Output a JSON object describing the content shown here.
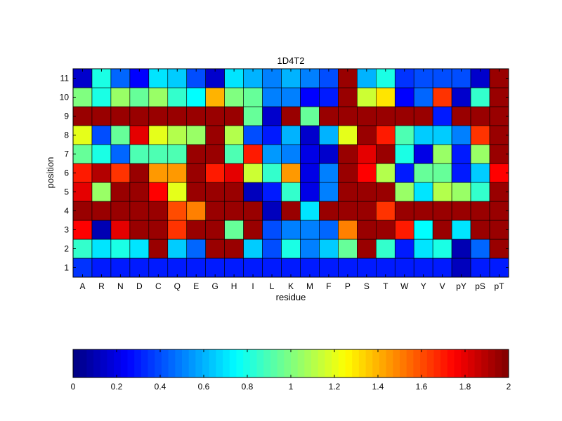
{
  "chart_data": {
    "type": "heatmap",
    "title": "1D4T2",
    "xlabel": "residue",
    "ylabel": "position",
    "x_categories": [
      "A",
      "R",
      "N",
      "D",
      "C",
      "Q",
      "E",
      "G",
      "H",
      "I",
      "L",
      "K",
      "M",
      "F",
      "P",
      "S",
      "T",
      "W",
      "Y",
      "V",
      "pY",
      "pS",
      "pT"
    ],
    "y_categories": [
      "1",
      "2",
      "3",
      "4",
      "5",
      "6",
      "7",
      "8",
      "9",
      "10",
      "11"
    ],
    "colormap": "jet",
    "clim": [
      0,
      2
    ],
    "colorbar": {
      "orientation": "horizontal",
      "placement": "bottom",
      "ticks": [
        0,
        0.2,
        0.4,
        0.6,
        0.8,
        1,
        1.2,
        1.4,
        1.6,
        1.8,
        2
      ],
      "tick_labels": [
        "0",
        "0.2",
        "0.4",
        "0.6",
        "0.8",
        "1",
        "1.2",
        "1.4",
        "1.6",
        "1.8",
        "2"
      ]
    },
    "grid": false,
    "values": [
      [
        0.35,
        0.3,
        0.3,
        0.3,
        0.3,
        0.3,
        0.3,
        0.3,
        0.3,
        0.3,
        0.3,
        0.3,
        0.3,
        0.3,
        0.3,
        0.3,
        0.3,
        0.3,
        0.3,
        0.3,
        0.12,
        0.3,
        0.3
      ],
      [
        0.85,
        0.7,
        0.8,
        0.7,
        1.95,
        0.65,
        0.45,
        1.95,
        1.95,
        0.65,
        0.4,
        0.8,
        0.5,
        0.65,
        0.95,
        1.95,
        0.85,
        0.3,
        0.7,
        0.8,
        0.1,
        0.45,
        1.95
      ],
      [
        1.75,
        0.1,
        1.8,
        1.95,
        1.95,
        1.65,
        1.95,
        1.95,
        0.95,
        1.95,
        0.4,
        0.5,
        0.5,
        0.45,
        1.5,
        1.95,
        1.95,
        1.7,
        0.75,
        1.95,
        0.7,
        1.95,
        1.95
      ],
      [
        1.95,
        1.95,
        1.95,
        1.95,
        1.95,
        1.6,
        1.5,
        1.95,
        1.95,
        1.95,
        0.12,
        1.95,
        0.7,
        1.95,
        1.95,
        1.95,
        1.65,
        1.95,
        1.95,
        1.95,
        1.95,
        1.95,
        1.95
      ],
      [
        1.8,
        1.05,
        1.95,
        1.95,
        1.75,
        1.2,
        1.95,
        1.95,
        1.95,
        0.12,
        0.3,
        0.85,
        0.2,
        0.5,
        1.95,
        1.95,
        1.95,
        1.05,
        0.7,
        1.1,
        1.05,
        0.85,
        1.95
      ],
      [
        1.7,
        1.9,
        1.65,
        1.95,
        1.45,
        1.45,
        1.95,
        1.7,
        1.8,
        1.15,
        0.85,
        1.45,
        0.2,
        0.5,
        1.95,
        1.75,
        1.1,
        0.3,
        0.95,
        0.95,
        0.3,
        0.65,
        1.75
      ],
      [
        0.95,
        0.8,
        0.45,
        0.9,
        0.9,
        0.9,
        1.95,
        1.95,
        0.9,
        1.7,
        0.55,
        0.5,
        0.2,
        0.15,
        1.95,
        1.8,
        1.95,
        0.8,
        0.2,
        1.05,
        0.3,
        1.05,
        1.95
      ],
      [
        1.2,
        0.4,
        0.95,
        1.8,
        1.2,
        1.1,
        1.05,
        1.95,
        1.1,
        0.4,
        0.3,
        0.6,
        0.15,
        0.6,
        1.2,
        1.95,
        1.7,
        0.9,
        0.65,
        0.65,
        0.5,
        1.65,
        1.95
      ],
      [
        1.95,
        1.95,
        1.95,
        1.95,
        1.95,
        1.95,
        1.95,
        1.95,
        1.95,
        0.95,
        0.15,
        1.95,
        0.95,
        1.95,
        1.95,
        1.95,
        1.95,
        1.95,
        1.95,
        0.3,
        1.95,
        1.95,
        1.95
      ],
      [
        1.0,
        0.8,
        1.05,
        0.95,
        1.05,
        0.85,
        0.75,
        1.4,
        1.0,
        0.95,
        0.5,
        0.5,
        0.25,
        0.3,
        1.95,
        1.15,
        1.3,
        0.25,
        0.45,
        1.65,
        0.15,
        0.85,
        1.95
      ],
      [
        0.15,
        0.8,
        0.45,
        0.25,
        0.7,
        0.65,
        0.4,
        0.15,
        0.7,
        0.6,
        0.5,
        0.6,
        0.5,
        0.4,
        1.95,
        0.6,
        0.8,
        0.35,
        0.4,
        0.4,
        0.4,
        0.15,
        1.95
      ]
    ]
  }
}
